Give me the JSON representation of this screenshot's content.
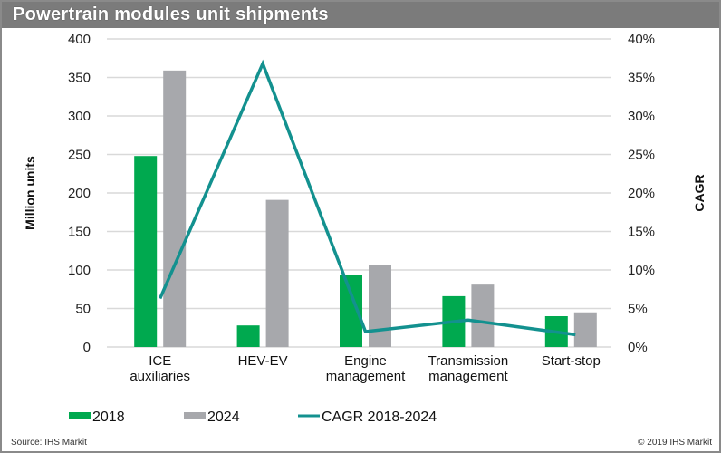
{
  "header": {
    "title": "Powertrain modules unit shipments"
  },
  "footer": {
    "source": "Source: IHS Markit",
    "copyright": "© 2019 IHS Markit"
  },
  "colors": {
    "s2018": "#00a94f",
    "s2024": "#a7a8ac",
    "cagr": "#13918f",
    "grid": "#d9d9d9"
  },
  "chart_data": {
    "type": "bar",
    "title": "Powertrain modules unit shipments",
    "categories": [
      [
        "ICE",
        "auxiliaries"
      ],
      [
        "HEV-EV"
      ],
      [
        "Engine",
        "management"
      ],
      [
        "Transmission",
        "management"
      ],
      [
        "Start-stop"
      ]
    ],
    "series": [
      {
        "name": "2018",
        "type": "bar",
        "axis": "left",
        "values": [
          248,
          28,
          93,
          66,
          40
        ]
      },
      {
        "name": "2024",
        "type": "bar",
        "axis": "left",
        "values": [
          359,
          191,
          106,
          81,
          45
        ]
      },
      {
        "name": "CAGR 2018-2024",
        "type": "line",
        "axis": "right",
        "values": [
          6.3,
          36.8,
          2.0,
          3.5,
          1.6
        ]
      }
    ],
    "ylabel": "Million units",
    "ylim": [
      0,
      400
    ],
    "yticks": [
      "0",
      "50",
      "100",
      "150",
      "200",
      "250",
      "300",
      "350",
      "400"
    ],
    "y2label": "CAGR",
    "y2lim": [
      0,
      40
    ],
    "y2ticks": [
      "0%",
      "5%",
      "10%",
      "15%",
      "20%",
      "25%",
      "30%",
      "35%",
      "40%"
    ],
    "grid": true,
    "legend": "bottom"
  }
}
